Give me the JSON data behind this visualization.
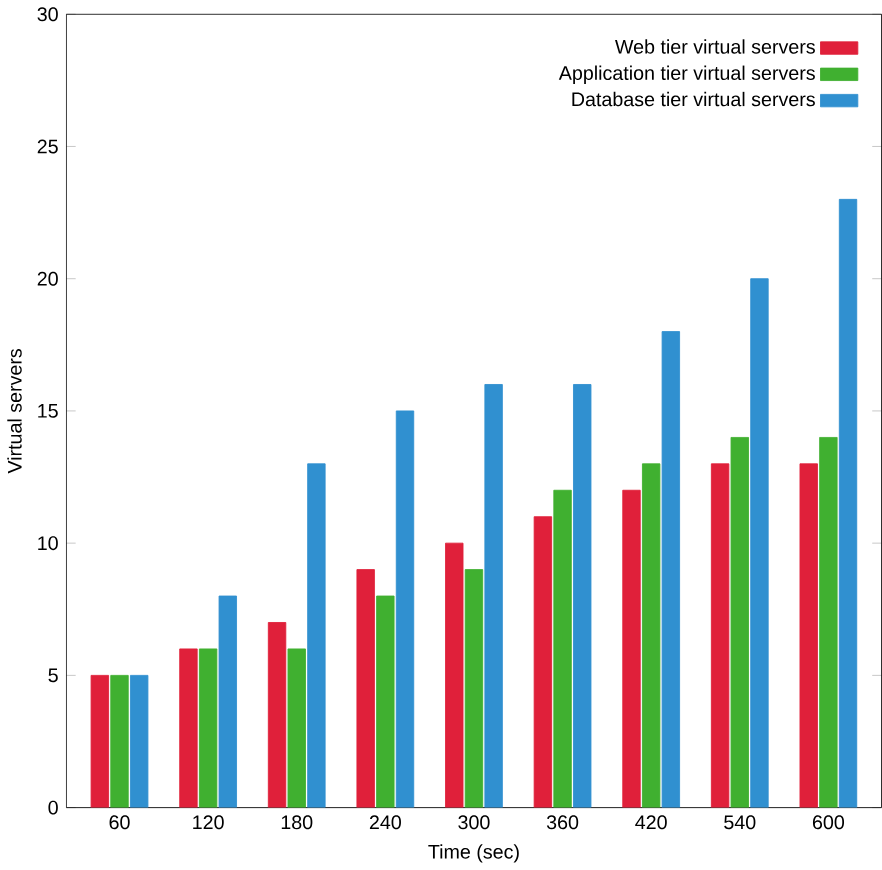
{
  "chart_data": {
    "type": "bar",
    "xlabel": "Time (sec)",
    "ylabel": "Virtual servers",
    "categories": [
      "60",
      "120",
      "180",
      "240",
      "300",
      "360",
      "420",
      "540",
      "600"
    ],
    "series": [
      {
        "name": "Web tier virtual servers",
        "color": "#e0203a",
        "values": [
          5,
          6,
          7,
          9,
          10,
          11,
          12,
          13,
          13
        ]
      },
      {
        "name": "Application tier virtual servers",
        "color": "#40b030",
        "values": [
          5,
          6,
          6,
          8,
          9,
          12,
          13,
          14,
          14
        ]
      },
      {
        "name": "Database tier virtual servers",
        "color": "#3090d0",
        "values": [
          5,
          8,
          13,
          15,
          16,
          16,
          18,
          20,
          23
        ]
      }
    ],
    "ylim": [
      0,
      30
    ],
    "yticks": [
      0,
      5,
      10,
      15,
      20,
      25,
      30
    ],
    "legend": "top right",
    "grid": false
  }
}
